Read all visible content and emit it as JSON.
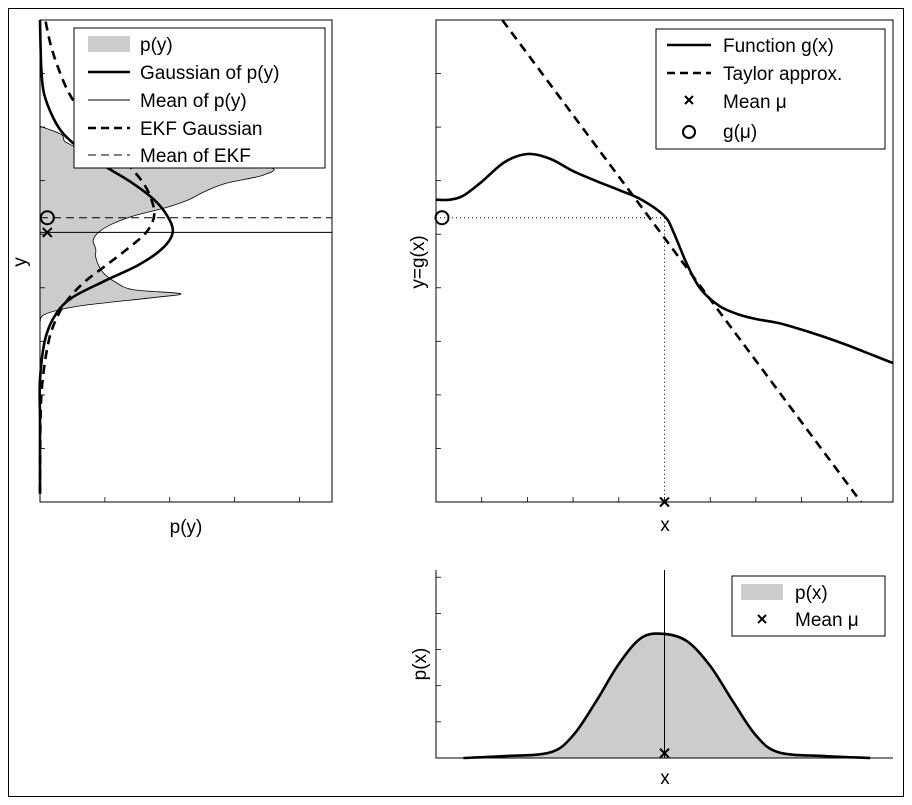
{
  "chart_data": [
    {
      "type": "area",
      "orientation": "horizontal-density",
      "xlabel": "p(y)",
      "ylabel": "y",
      "legend_placement": "top-right",
      "grid": false,
      "legend": [
        "p(y)",
        "Gaussian of p(y)",
        "Mean of p(y)",
        "EKF Gaussian",
        "Mean of EKF"
      ],
      "axis_ranges": {
        "x": [
          0,
          1.1
        ],
        "y": [
          -3.5,
          2.4
        ]
      },
      "series": [
        {
          "name": "p(y)",
          "style": "gray-fill",
          "y": [
            -1.3,
            -1.2,
            -1.1,
            -1.0,
            -0.95,
            -0.9,
            -0.8,
            -0.7,
            -0.6,
            -0.5,
            -0.4,
            -0.3,
            -0.2,
            -0.1,
            0.0,
            0.1,
            0.2,
            0.3,
            0.4,
            0.5,
            0.6,
            0.7,
            0.8,
            0.9,
            1.0,
            1.1
          ],
          "values": [
            0.0,
            0.02,
            0.15,
            0.42,
            0.53,
            0.35,
            0.28,
            0.24,
            0.22,
            0.21,
            0.21,
            0.2,
            0.22,
            0.27,
            0.35,
            0.47,
            0.56,
            0.62,
            0.7,
            0.84,
            0.86,
            0.55,
            0.2,
            0.1,
            0.08,
            0.0
          ]
        },
        {
          "name": "Gaussian of p(y)",
          "style": "thick-solid",
          "y": [
            -3.4,
            -2.5,
            -2.0,
            -1.5,
            -1.2,
            -1.0,
            -0.8,
            -0.6,
            -0.4,
            -0.2,
            0.0,
            0.2,
            0.4,
            0.6,
            0.8,
            1.0,
            1.2,
            1.5,
            1.8,
            2.1,
            2.4
          ],
          "values": [
            0.0,
            0.0,
            0.0,
            0.02,
            0.06,
            0.12,
            0.24,
            0.37,
            0.46,
            0.5,
            0.48,
            0.43,
            0.35,
            0.25,
            0.16,
            0.09,
            0.05,
            0.015,
            0.005,
            0.002,
            0.0
          ]
        },
        {
          "name": "EKF Gaussian",
          "style": "thick-dashed",
          "y": [
            -3.4,
            -2.5,
            -2.0,
            -1.5,
            -1.2,
            -1.0,
            -0.8,
            -0.6,
            -0.4,
            -0.2,
            0.0,
            0.2,
            0.4,
            0.6,
            0.8,
            1.0,
            1.2,
            1.5,
            1.8,
            2.1,
            2.4
          ],
          "values": [
            0.0,
            0.002,
            0.01,
            0.035,
            0.07,
            0.11,
            0.17,
            0.25,
            0.33,
            0.4,
            0.43,
            0.42,
            0.39,
            0.34,
            0.28,
            0.22,
            0.17,
            0.11,
            0.07,
            0.04,
            0.02
          ]
        }
      ],
      "lines": [
        {
          "name": "Mean of p(y)",
          "style": "thin-solid",
          "y": -0.2
        },
        {
          "name": "Mean of EKF",
          "style": "thin-dashed",
          "y": -0.02
        }
      ],
      "markers": [
        {
          "name": "x",
          "symbol": "x",
          "x": 0.02,
          "y": -0.2
        },
        {
          "name": "o",
          "symbol": "o",
          "x": 0.02,
          "y": -0.02
        }
      ]
    },
    {
      "type": "line",
      "xlabel": "x",
      "ylabel": "y=g(x)",
      "legend_placement": "top-right",
      "grid": false,
      "legend": [
        "Function g(x)",
        "Taylor approx.",
        "Mean μ",
        "g(μ)"
      ],
      "axis_ranges": {
        "x": [
          0,
          10
        ],
        "y": [
          -3.5,
          2.4
        ]
      },
      "series": [
        {
          "name": "Function g(x)",
          "style": "thick-solid",
          "x": [
            0.0,
            0.3,
            0.6,
            1.0,
            1.5,
            2.0,
            2.5,
            3.0,
            3.5,
            4.0,
            4.5,
            5.0,
            5.2,
            5.5,
            5.8,
            6.2,
            6.6,
            7.0,
            7.5,
            8.0,
            8.5,
            9.0,
            9.5,
            10.0
          ],
          "y": [
            0.2,
            0.2,
            0.25,
            0.42,
            0.66,
            0.76,
            0.7,
            0.55,
            0.43,
            0.32,
            0.2,
            0.0,
            -0.2,
            -0.6,
            -0.9,
            -1.1,
            -1.2,
            -1.26,
            -1.31,
            -1.39,
            -1.48,
            -1.58,
            -1.69,
            -1.8
          ]
        },
        {
          "name": "Taylor approx.",
          "style": "thick-dashed",
          "x": [
            1.45,
            9.3
          ],
          "y": [
            2.4,
            -3.5
          ]
        }
      ],
      "markers": [
        {
          "name": "Mean μ",
          "symbol": "x",
          "x": 5.0,
          "y": -3.5
        },
        {
          "name": "g(μ)",
          "symbol": "o",
          "x": 0.0,
          "y": -0.02
        }
      ],
      "guides": [
        {
          "style": "dotted",
          "from": [
            0.0,
            -0.02
          ],
          "to": [
            5.0,
            -0.02
          ]
        },
        {
          "style": "dotted",
          "from": [
            5.0,
            -0.02
          ],
          "to": [
            5.0,
            -3.5
          ]
        }
      ]
    },
    {
      "type": "area",
      "xlabel": "x",
      "ylabel": "p(x)",
      "legend_placement": "top-right",
      "grid": false,
      "legend": [
        "p(x)",
        "Mean μ"
      ],
      "axis_ranges": {
        "x": [
          0,
          10
        ],
        "y": [
          0,
          1.0
        ]
      },
      "series": [
        {
          "name": "p(x)",
          "style": "gray-fill-outlined",
          "x": [
            0.6,
            1.5,
            2.5,
            3.0,
            3.5,
            4.0,
            4.5,
            5.0,
            5.5,
            6.0,
            6.5,
            7.0,
            7.5,
            8.5,
            9.5
          ],
          "y": [
            0.0,
            0.01,
            0.03,
            0.12,
            0.3,
            0.5,
            0.64,
            0.66,
            0.62,
            0.49,
            0.3,
            0.12,
            0.03,
            0.01,
            0.0
          ]
        }
      ],
      "lines": [
        {
          "name": "Mean μ",
          "style": "thin-solid",
          "x": 5.0
        }
      ],
      "markers": [
        {
          "name": "Mean μ",
          "symbol": "x",
          "x": 5.0,
          "y": 0.02
        }
      ]
    }
  ]
}
